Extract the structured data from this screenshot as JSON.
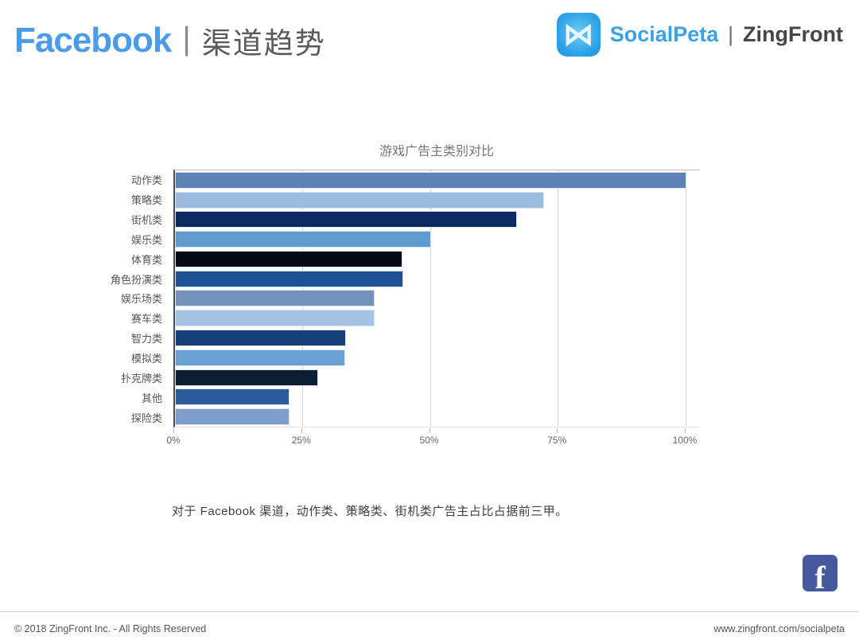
{
  "header": {
    "platform": "Facebook",
    "separator": "|",
    "subtitle": "渠道趋势",
    "brand": {
      "icon": "bowtie-icon",
      "icon_glyph": "⋈",
      "primary": "SocialPeta",
      "separator": "|",
      "secondary": "ZingFront"
    }
  },
  "chart_data": {
    "type": "bar",
    "orientation": "horizontal",
    "title": "游戏广告主类别对比",
    "categories": [
      "动作类",
      "策略类",
      "街机类",
      "娱乐类",
      "体育类",
      "角色扮演类",
      "娱乐场类",
      "赛车类",
      "智力类",
      "模拟类",
      "扑克牌类",
      "其他",
      "探险类"
    ],
    "values": [
      100,
      72.2,
      66.9,
      50.0,
      44.5,
      44.7,
      39.0,
      39.0,
      33.4,
      33.3,
      28.0,
      22.4,
      22.4
    ],
    "bar_colors": [
      "#5c83b4",
      "#9cbcdd",
      "#0b2a5f",
      "#5e9bce",
      "#060a12",
      "#1d5094",
      "#7292bd",
      "#a6c3e1",
      "#173e75",
      "#6aa0d4",
      "#0c1e33",
      "#2c5c9e",
      "#7f9ecb"
    ],
    "unit": "%",
    "xlabel": "",
    "ylabel": "",
    "xlim": [
      0,
      100
    ],
    "x_tick_labels": [
      "0%",
      "25%",
      "50%",
      "75%",
      "100%"
    ],
    "x_tick_values": [
      0,
      25,
      50,
      75,
      100
    ],
    "grid": "vertical-gridlines-on",
    "legend": "none",
    "annotation_icon": "facebook-icon",
    "facebook_glyph": "f"
  },
  "caption": "对于 Facebook 渠道，动作类、策略类、街机类广告主占比占据前三甲。",
  "footer": {
    "left": "© 2018 ZingFront Inc. - All Rights Reserved",
    "right": "www.zingfront.com/socialpeta"
  },
  "colors": {
    "header_blue": "#4a9be8",
    "brand_blue": "#3aa2e4",
    "brand_dark": "#464649",
    "facebook_badge_blue": "#44599e",
    "gridline": "#d6d6d6",
    "axis_line": "#4c4c4c"
  }
}
